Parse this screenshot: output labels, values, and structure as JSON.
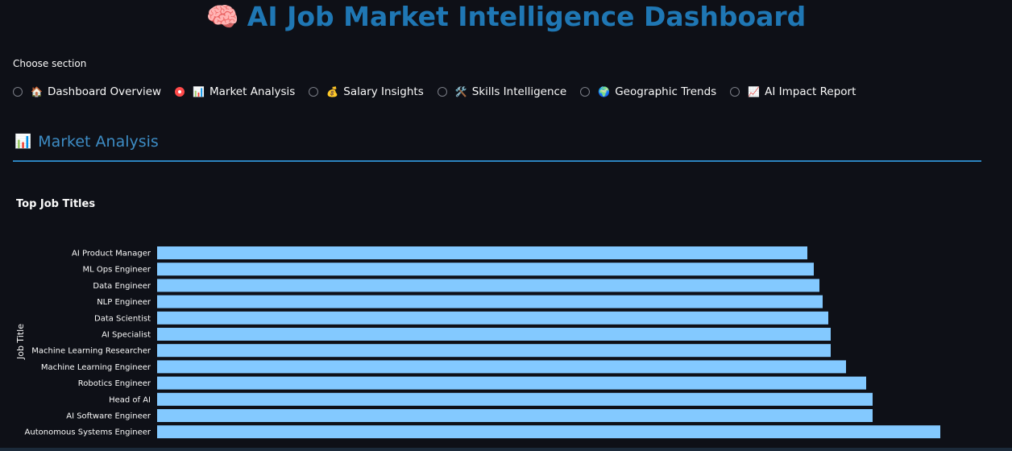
{
  "header": {
    "title_emoji": "🧠",
    "title": "AI Job Market Intelligence Dashboard"
  },
  "nav": {
    "label": "Choose section",
    "options": [
      {
        "emoji": "🏠",
        "label": "Dashboard Overview",
        "selected": false
      },
      {
        "emoji": "📊",
        "label": "Market Analysis",
        "selected": true
      },
      {
        "emoji": "💰",
        "label": "Salary Insights",
        "selected": false
      },
      {
        "emoji": "🛠️",
        "label": "Skills Intelligence",
        "selected": false
      },
      {
        "emoji": "🌍",
        "label": "Geographic Trends",
        "selected": false
      },
      {
        "emoji": "📈",
        "label": "AI Impact Report",
        "selected": false
      }
    ]
  },
  "section": {
    "emoji": "📊",
    "title": "Market Analysis"
  },
  "chart_data": {
    "type": "bar",
    "orientation": "horizontal",
    "title": "Top Job Titles",
    "ylabel": "Job Title",
    "xlabel": "",
    "bar_color": "#83c9ff",
    "categories": [
      "AI Product Manager",
      "ML Ops Engineer",
      "Data Engineer",
      "NLP Engineer",
      "Data Scientist",
      "AI Specialist",
      "Machine Learning Researcher",
      "Machine Learning Engineer",
      "Robotics Engineer",
      "Head of AI",
      "AI Software Engineer",
      "Autonomous Systems Engineer"
    ],
    "values": [
      807,
      815,
      822,
      826,
      833,
      836,
      836,
      855,
      880,
      888,
      888,
      972
    ],
    "xlim": [
      0,
      1000
    ]
  }
}
